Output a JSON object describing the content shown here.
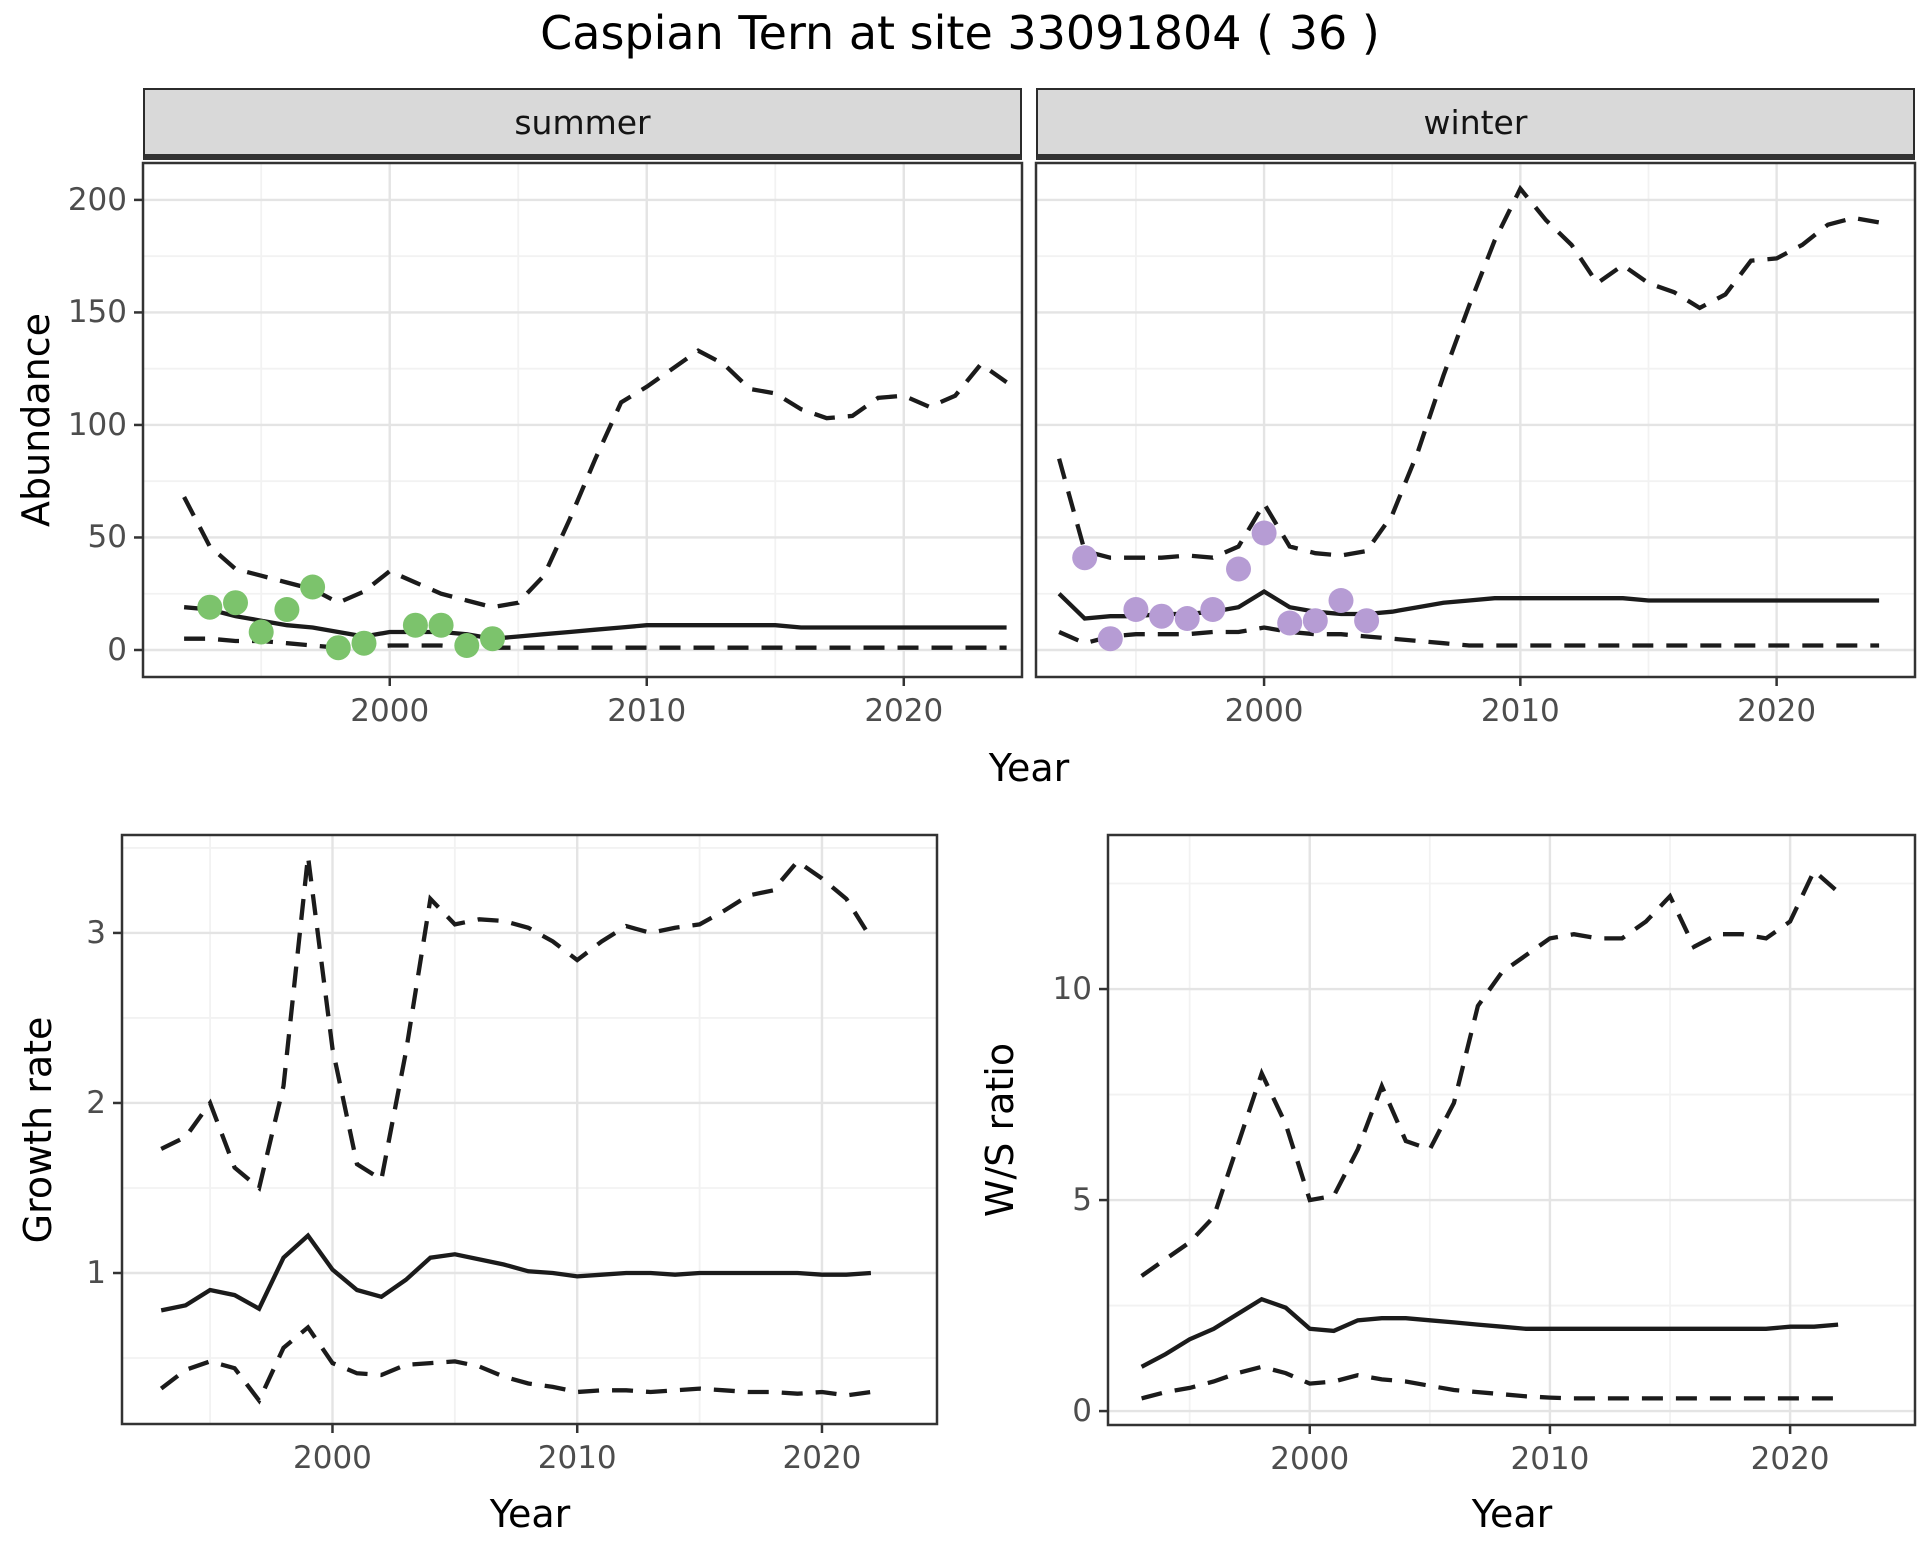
{
  "title": "Caspian Tern at site 33091804 ( 36 )",
  "top_row": {
    "facets": [
      "summer",
      "winter"
    ],
    "y_axis_label": "Abundance",
    "x_axis_label": "Year"
  },
  "bottom_row": {
    "left": {
      "y_axis_label": "Growth rate",
      "x_axis_label": "Year"
    },
    "right": {
      "y_axis_label": "W/S ratio",
      "x_axis_label": "Year"
    }
  },
  "colors": {
    "summer_point": "#7cc36c",
    "winter_point": "#b69cd4",
    "line": "#1b1b1b",
    "strip_bg": "#d9d9d9",
    "grid_major": "#e4e4e4",
    "grid_minor": "#f2f2f2",
    "tick_text": "#4d4d4d",
    "panel_border": "#333333"
  },
  "chart_data": [
    {
      "id": "summer_abundance",
      "type": "line",
      "facet_label": "summer",
      "ylabel": "Abundance",
      "xlabel": "Year",
      "xlim": [
        1990.4,
        2024.6
      ],
      "ylim": [
        -12,
        216.4
      ],
      "x_major_ticks": [
        2000,
        2010,
        2020
      ],
      "x_tick_labels": [
        "2000",
        "2010",
        "2020"
      ],
      "x_minor_ticks": [
        1995,
        2005,
        2015
      ],
      "y_major_ticks": [
        0,
        50,
        100,
        150,
        200
      ],
      "y_tick_labels": [
        "0",
        "50",
        "100",
        "150",
        "200"
      ],
      "y_minor_ticks": [
        25,
        75,
        125,
        175
      ],
      "show_y_tick_labels": true,
      "years": [
        1992,
        1993,
        1994,
        1995,
        1996,
        1997,
        1998,
        1999,
        2000,
        2001,
        2002,
        2003,
        2004,
        2005,
        2006,
        2007,
        2008,
        2009,
        2010,
        2011,
        2012,
        2013,
        2014,
        2015,
        2016,
        2017,
        2018,
        2019,
        2020,
        2021,
        2022,
        2023,
        2024
      ],
      "series": [
        {
          "name": "upper_ci",
          "style": "dashed",
          "values": [
            68,
            46,
            36,
            33,
            30,
            27,
            21,
            26,
            35,
            30,
            25,
            22,
            19,
            21,
            33,
            58,
            85,
            110,
            117,
            125,
            133,
            127,
            116,
            114,
            107,
            103,
            104,
            112,
            113,
            108,
            113,
            127,
            119
          ]
        },
        {
          "name": "median",
          "style": "solid",
          "values": [
            19,
            18,
            15,
            13,
            11,
            10,
            8,
            6,
            8,
            8,
            8,
            7,
            5,
            6,
            7,
            8,
            9,
            10,
            11,
            11,
            11,
            11,
            11,
            11,
            10,
            10,
            10,
            10,
            10,
            10,
            10,
            10,
            10
          ]
        },
        {
          "name": "lower_ci",
          "style": "dashed",
          "values": [
            5,
            5,
            4,
            4,
            3,
            2,
            1,
            1,
            2,
            2,
            2,
            1,
            1,
            1,
            1,
            1,
            1,
            1,
            1,
            1,
            1,
            1,
            1,
            1,
            1,
            1,
            1,
            1,
            1,
            1,
            1,
            1,
            1
          ]
        }
      ],
      "points": {
        "name": "observed_summer_counts",
        "color": "#7cc36c",
        "data": [
          [
            1993,
            19
          ],
          [
            1994,
            21
          ],
          [
            1995,
            8
          ],
          [
            1996,
            18
          ],
          [
            1997,
            28
          ],
          [
            1998,
            1
          ],
          [
            1999,
            3
          ],
          [
            2001,
            11
          ],
          [
            2002,
            11
          ],
          [
            2003,
            2
          ],
          [
            2004,
            5
          ]
        ]
      }
    },
    {
      "id": "winter_abundance",
      "type": "line",
      "facet_label": "winter",
      "ylabel": "Abundance",
      "xlabel": "Year",
      "xlim": [
        1991.1,
        2025.4
      ],
      "ylim": [
        -12,
        216.4
      ],
      "x_major_ticks": [
        2000,
        2010,
        2020
      ],
      "x_tick_labels": [
        "2000",
        "2010",
        "2020"
      ],
      "x_minor_ticks": [
        1995,
        2005,
        2015
      ],
      "y_major_ticks": [
        0,
        50,
        100,
        150,
        200
      ],
      "y_tick_labels": [
        "0",
        "50",
        "100",
        "150",
        "200"
      ],
      "y_minor_ticks": [
        25,
        75,
        125,
        175
      ],
      "show_y_tick_labels": false,
      "years": [
        1992,
        1993,
        1994,
        1995,
        1996,
        1997,
        1998,
        1999,
        2000,
        2001,
        2002,
        2003,
        2004,
        2005,
        2006,
        2007,
        2008,
        2009,
        2010,
        2011,
        2012,
        2013,
        2014,
        2015,
        2016,
        2017,
        2018,
        2019,
        2020,
        2021,
        2022,
        2023,
        2024
      ],
      "series": [
        {
          "name": "upper_ci",
          "style": "dashed",
          "values": [
            85,
            44,
            41,
            41,
            41,
            42,
            41,
            46,
            65,
            46,
            43,
            42,
            44,
            60,
            88,
            122,
            153,
            182,
            205,
            191,
            180,
            163,
            171,
            163,
            159,
            152,
            158,
            173,
            174,
            180,
            189,
            192,
            190
          ]
        },
        {
          "name": "median",
          "style": "solid",
          "values": [
            25,
            14,
            15,
            15,
            16,
            16,
            17,
            19,
            26,
            19,
            17,
            16,
            16,
            17,
            19,
            21,
            22,
            23,
            23,
            23,
            23,
            23,
            23,
            22,
            22,
            22,
            22,
            22,
            22,
            22,
            22,
            22,
            22
          ]
        },
        {
          "name": "lower_ci",
          "style": "dashed",
          "values": [
            8,
            3,
            6,
            7,
            7,
            7,
            8,
            8,
            10,
            8,
            7,
            7,
            6,
            5,
            4,
            3,
            2,
            2,
            2,
            2,
            2,
            2,
            2,
            2,
            2,
            2,
            2,
            2,
            2,
            2,
            2,
            2,
            2
          ]
        }
      ],
      "points": {
        "name": "observed_winter_counts",
        "color": "#b69cd4",
        "data": [
          [
            1993,
            41
          ],
          [
            1994,
            5
          ],
          [
            1995,
            18
          ],
          [
            1996,
            15
          ],
          [
            1997,
            14
          ],
          [
            1998,
            18
          ],
          [
            1999,
            36
          ],
          [
            2000,
            52
          ],
          [
            2001,
            12
          ],
          [
            2002,
            13
          ],
          [
            2003,
            22
          ],
          [
            2004,
            13
          ]
        ]
      }
    },
    {
      "id": "growth_rate",
      "type": "line",
      "facet_label": "",
      "ylabel": "Growth rate",
      "xlabel": "Year",
      "xlim": [
        1991.4,
        2024.7
      ],
      "ylim": [
        0.112,
        3.576
      ],
      "x_major_ticks": [
        2000,
        2010,
        2020
      ],
      "x_tick_labels": [
        "2000",
        "2010",
        "2020"
      ],
      "x_minor_ticks": [
        1995,
        2005,
        2015
      ],
      "y_major_ticks": [
        1,
        2,
        3
      ],
      "y_tick_labels": [
        "1",
        "2",
        "3"
      ],
      "y_minor_ticks": [
        0.5,
        1.5,
        2.5,
        3.5
      ],
      "show_y_tick_labels": true,
      "years": [
        1993,
        1994,
        1995,
        1996,
        1997,
        1998,
        1999,
        2000,
        2001,
        2002,
        2003,
        2004,
        2005,
        2006,
        2007,
        2008,
        2009,
        2010,
        2011,
        2012,
        2013,
        2014,
        2015,
        2016,
        2017,
        2018,
        2019,
        2020,
        2021,
        2022
      ],
      "series": [
        {
          "name": "upper_ci",
          "style": "dashed",
          "values": [
            1.73,
            1.8,
            2.0,
            1.62,
            1.5,
            2.1,
            3.45,
            2.32,
            1.64,
            1.55,
            2.3,
            3.2,
            3.05,
            3.08,
            3.07,
            3.03,
            2.95,
            2.84,
            2.95,
            3.04,
            3.0,
            3.03,
            3.05,
            3.13,
            3.22,
            3.25,
            3.42,
            3.32,
            3.2,
            2.97
          ]
        },
        {
          "name": "median",
          "style": "solid",
          "values": [
            0.78,
            0.81,
            0.9,
            0.87,
            0.79,
            1.09,
            1.22,
            1.02,
            0.9,
            0.86,
            0.96,
            1.09,
            1.11,
            1.08,
            1.05,
            1.01,
            1.0,
            0.98,
            0.99,
            1.0,
            1.0,
            0.99,
            1.0,
            1.0,
            1.0,
            1.0,
            1.0,
            0.99,
            0.99,
            1.0
          ]
        },
        {
          "name": "lower_ci",
          "style": "dashed",
          "values": [
            0.32,
            0.43,
            0.48,
            0.44,
            0.25,
            0.56,
            0.68,
            0.47,
            0.41,
            0.4,
            0.46,
            0.47,
            0.48,
            0.45,
            0.39,
            0.35,
            0.33,
            0.3,
            0.31,
            0.31,
            0.3,
            0.31,
            0.32,
            0.31,
            0.3,
            0.3,
            0.29,
            0.3,
            0.28,
            0.3
          ]
        }
      ],
      "points": null
    },
    {
      "id": "ws_ratio",
      "type": "line",
      "facet_label": "",
      "ylabel": "W/S ratio",
      "xlabel": "Year",
      "xlim": [
        1991.6,
        2025.2
      ],
      "ylim": [
        -0.33,
        13.65
      ],
      "x_major_ticks": [
        2000,
        2010,
        2020
      ],
      "x_tick_labels": [
        "2000",
        "2010",
        "2020"
      ],
      "x_minor_ticks": [
        1995,
        2005,
        2015
      ],
      "y_major_ticks": [
        0,
        5,
        10
      ],
      "y_tick_labels": [
        "0",
        "5",
        "10"
      ],
      "y_minor_ticks": [
        2.5,
        7.5,
        12.5
      ],
      "show_y_tick_labels": true,
      "years": [
        1993,
        1994,
        1995,
        1996,
        1997,
        1998,
        1999,
        2000,
        2001,
        2002,
        2003,
        2004,
        2005,
        2006,
        2007,
        2008,
        2009,
        2010,
        2011,
        2012,
        2013,
        2014,
        2015,
        2016,
        2017,
        2018,
        2019,
        2020,
        2021,
        2022
      ],
      "series": [
        {
          "name": "upper_ci",
          "style": "dashed",
          "values": [
            3.2,
            3.6,
            4.0,
            4.6,
            6.3,
            8.0,
            6.8,
            5.0,
            5.1,
            6.2,
            7.7,
            6.4,
            6.2,
            7.3,
            9.6,
            10.4,
            10.8,
            11.2,
            11.3,
            11.2,
            11.2,
            11.6,
            12.2,
            11.0,
            11.3,
            11.3,
            11.2,
            11.6,
            12.8,
            12.3
          ]
        },
        {
          "name": "median",
          "style": "solid",
          "values": [
            1.05,
            1.35,
            1.7,
            1.95,
            2.3,
            2.65,
            2.45,
            1.95,
            1.9,
            2.15,
            2.2,
            2.2,
            2.15,
            2.1,
            2.05,
            2.0,
            1.95,
            1.95,
            1.95,
            1.95,
            1.95,
            1.95,
            1.95,
            1.95,
            1.95,
            1.95,
            1.95,
            2.0,
            2.0,
            2.05
          ]
        },
        {
          "name": "lower_ci",
          "style": "dashed",
          "values": [
            0.3,
            0.45,
            0.55,
            0.7,
            0.9,
            1.05,
            0.9,
            0.65,
            0.7,
            0.85,
            0.75,
            0.7,
            0.6,
            0.5,
            0.45,
            0.4,
            0.35,
            0.32,
            0.3,
            0.3,
            0.3,
            0.3,
            0.3,
            0.3,
            0.3,
            0.3,
            0.3,
            0.3,
            0.3,
            0.3
          ]
        }
      ],
      "points": null
    }
  ]
}
